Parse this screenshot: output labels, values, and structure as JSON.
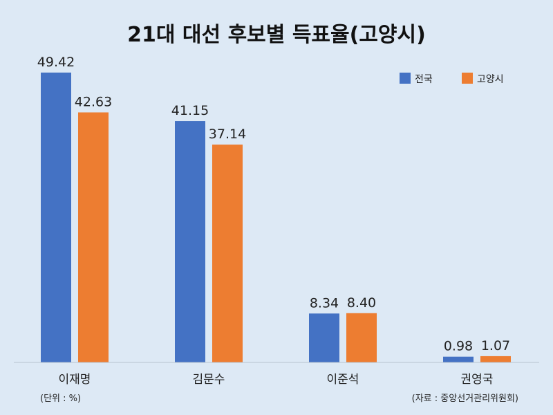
{
  "chart_data": {
    "type": "bar",
    "title": "21대 대선 후보별 득표율(고양시)",
    "categories": [
      "이재명",
      "김문수",
      "이준석",
      "권영국"
    ],
    "series": [
      {
        "name": "전국",
        "color": "#4472c4",
        "values": [
          49.42,
          41.15,
          8.34,
          0.98
        ],
        "labels": [
          "49.42",
          "41.15",
          "8.34",
          "0.98"
        ]
      },
      {
        "name": "고양시",
        "color": "#ed7d31",
        "values": [
          42.63,
          37.14,
          8.4,
          1.07
        ],
        "labels": [
          "42.63",
          "37.14",
          "8.40",
          "1.07"
        ]
      }
    ],
    "ylim": [
      0,
      50
    ],
    "grid": false,
    "legend": "top-right",
    "unit_note": "(단위 : %)",
    "source_note": "(자료 : 중앙선거관리위원회)"
  }
}
